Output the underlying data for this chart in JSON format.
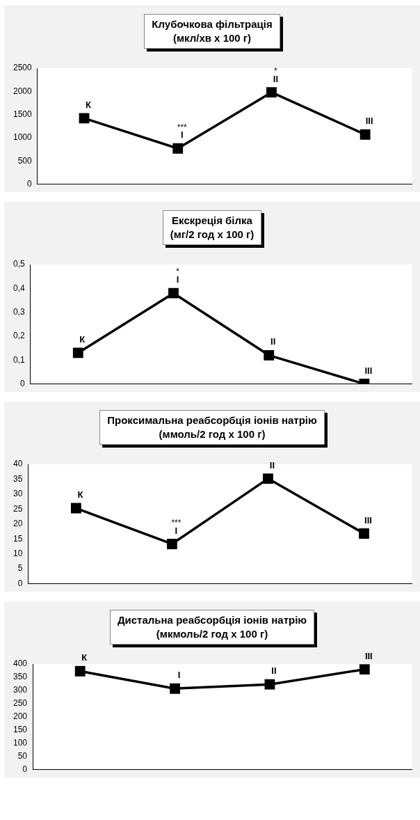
{
  "chart_data": [
    {
      "type": "line",
      "title": "Клубочкова фільтрація",
      "subtitle": "(мкл/хв  x 100 г)",
      "categories": [
        "К",
        "I",
        "II",
        "III"
      ],
      "values": [
        1420,
        770,
        1980,
        1070
      ],
      "color": "#000000",
      "ylim": [
        0,
        2500
      ],
      "yticks": [
        0,
        500,
        1000,
        1500,
        2000,
        2500
      ],
      "grid": false,
      "legend": false,
      "marker": "square",
      "tick_labels": "y",
      "annotations": [
        {
          "text": "***",
          "x": "I",
          "y": 770
        },
        {
          "text": "*",
          "x": "II",
          "y": 1980
        }
      ]
    },
    {
      "type": "line",
      "title": "Екскреція білка",
      "subtitle": "(мг/2 год  x 100 г)",
      "categories": [
        "К",
        "I",
        "II",
        "III"
      ],
      "values": [
        0.13,
        0.38,
        0.12,
        0
      ],
      "color": "#000000",
      "ylim": [
        0,
        0.5
      ],
      "yticks": [
        0,
        {
          "value": 0.1,
          "label": "0,1"
        },
        {
          "value": 0.2,
          "label": "0,2"
        },
        {
          "value": 0.3,
          "label": "0,3"
        },
        {
          "value": 0.4,
          "label": "0,4"
        },
        {
          "value": 0.5,
          "label": "0,5"
        }
      ],
      "grid": false,
      "legend": false,
      "marker": "square",
      "tick_labels": "y",
      "annotations": [
        {
          "text": "*",
          "x": "I",
          "y": 0.38
        }
      ]
    },
    {
      "type": "line",
      "title": "Проксимальна реабсорбція іонів натрію",
      "subtitle": "(ммоль/2 год  x 100 г)",
      "categories": [
        "К",
        "I",
        "II",
        "III"
      ],
      "values": [
        25.3,
        13.3,
        35.2,
        16.8
      ],
      "color": "#000000",
      "ylim": [
        0,
        40
      ],
      "yticks": [
        0,
        5,
        10,
        15,
        20,
        25,
        30,
        35,
        40
      ],
      "grid": false,
      "legend": false,
      "marker": "square",
      "tick_labels": "y",
      "annotations": [
        {
          "text": "***",
          "x": "I",
          "y": 13.3
        }
      ]
    },
    {
      "type": "line",
      "title": "Дистальна реабсорбція іонів натрію",
      "subtitle": "(мкмоль/2 год  x 100 г)",
      "categories": [
        "К",
        "I",
        "II",
        "III"
      ],
      "values": [
        373,
        307,
        323,
        380
      ],
      "color": "#000000",
      "ylim": [
        0,
        400
      ],
      "yticks": [
        0,
        50,
        100,
        150,
        200,
        250,
        300,
        350,
        400
      ],
      "grid": false,
      "legend": false,
      "marker": "square",
      "tick_labels": "y"
    }
  ]
}
